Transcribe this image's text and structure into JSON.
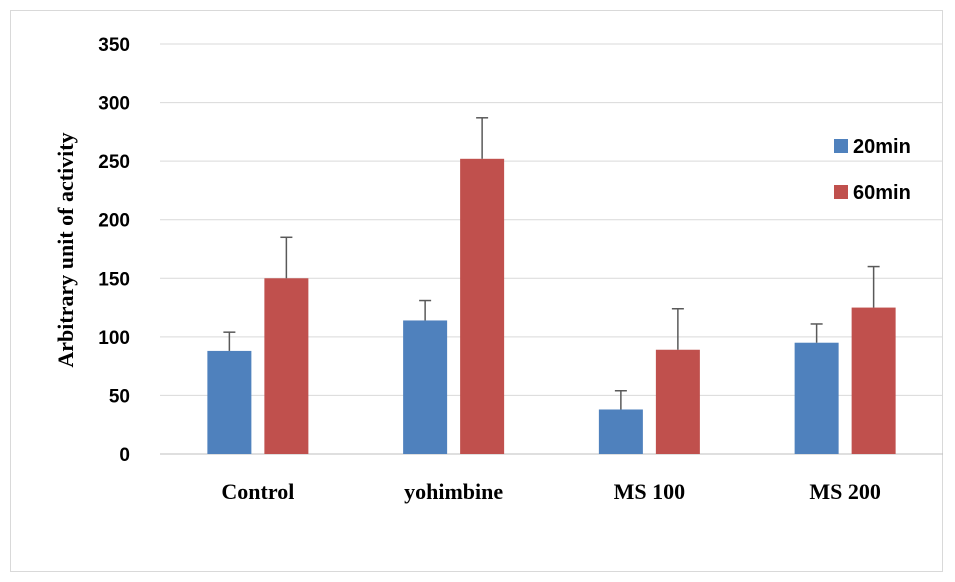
{
  "chart_data": {
    "type": "bar",
    "title": "",
    "xlabel": "",
    "ylabel": "Arbitrary unit of activity",
    "categories": [
      "Control",
      "yohimbine",
      "MS 100",
      "MS 200"
    ],
    "ylim": [
      0,
      350
    ],
    "yticks": [
      0,
      50,
      100,
      150,
      200,
      250,
      300,
      350
    ],
    "grid": true,
    "legend_position": "right",
    "series": [
      {
        "name": "20min",
        "color": "#4f81bd",
        "values": [
          88,
          114,
          38,
          95
        ],
        "errors": [
          16,
          17,
          16,
          16
        ]
      },
      {
        "name": "60min",
        "color": "#c0504d",
        "values": [
          150,
          252,
          89,
          125
        ],
        "errors": [
          35,
          35,
          35,
          35
        ]
      }
    ]
  }
}
